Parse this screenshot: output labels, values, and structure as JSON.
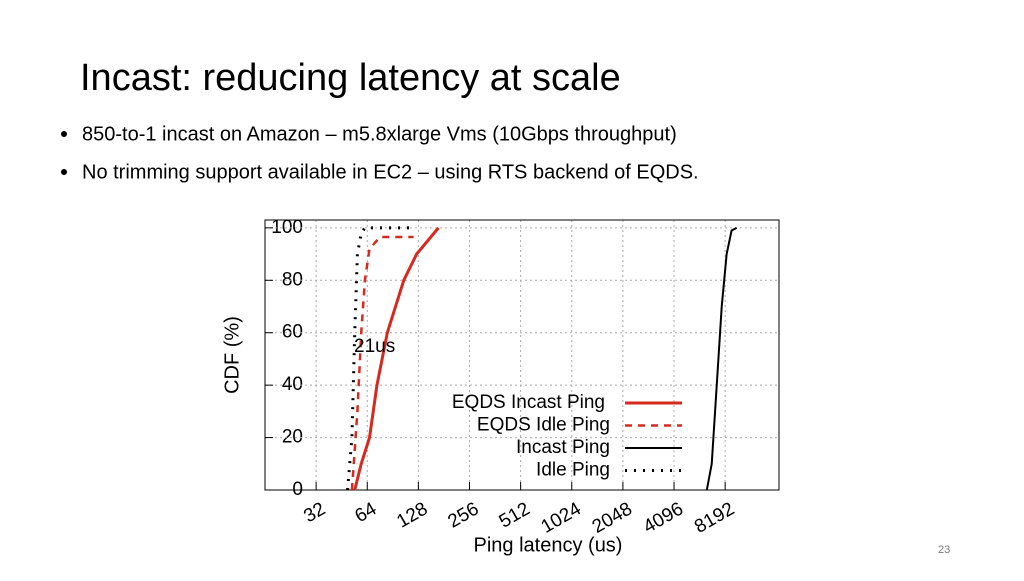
{
  "slide": {
    "title": "Incast: reducing latency at scale",
    "bullets": [
      "850-to-1 incast on Amazon – m5.8xlarge Vms (10Gbps throughput)",
      "No trimming support available in EC2 – using RTS backend of EQDS."
    ],
    "page_number": "23"
  },
  "chart_data": {
    "type": "line",
    "xlabel": "Ping latency (us)",
    "ylabel": "CDF (%)",
    "xscale": "log",
    "xlim": [
      16,
      17000
    ],
    "xticks": [
      32,
      64,
      128,
      256,
      512,
      1024,
      2048,
      4096,
      8192
    ],
    "ylim": [
      0,
      103
    ],
    "yticks": [
      0,
      20,
      40,
      60,
      80,
      100
    ],
    "grid": true,
    "legend": "center-right",
    "annotations": [
      "21us"
    ],
    "series": [
      {
        "name": "EQDS Incast Ping",
        "color": "#d62a1e",
        "dash": "solid",
        "x": [
          54,
          59,
          66,
          73,
          84,
          105,
          125,
          168
        ],
        "values": [
          0,
          10,
          20,
          40,
          60,
          80,
          90,
          100
        ]
      },
      {
        "name": "EQDS Idle Ping",
        "color": "#d62a1e",
        "dash": "dashed",
        "x": [
          52,
          56,
          59,
          62,
          66,
          76,
          120
        ],
        "values": [
          0,
          30,
          60,
          80,
          92,
          96.5,
          96.5
        ]
      },
      {
        "name": "Incast Ping",
        "color": "#000000",
        "dash": "solid",
        "x": [
          6390,
          6830,
          7310,
          7820,
          8360,
          8940,
          9570
        ],
        "values": [
          0,
          10,
          40,
          70,
          90,
          99,
          100
        ]
      },
      {
        "name": "Idle Ping",
        "color": "#000000",
        "dash": "dotted",
        "x": [
          49,
          52,
          54,
          56,
          59,
          62,
          120
        ],
        "values": [
          0,
          20,
          60,
          90,
          98,
          100,
          100
        ]
      }
    ]
  }
}
